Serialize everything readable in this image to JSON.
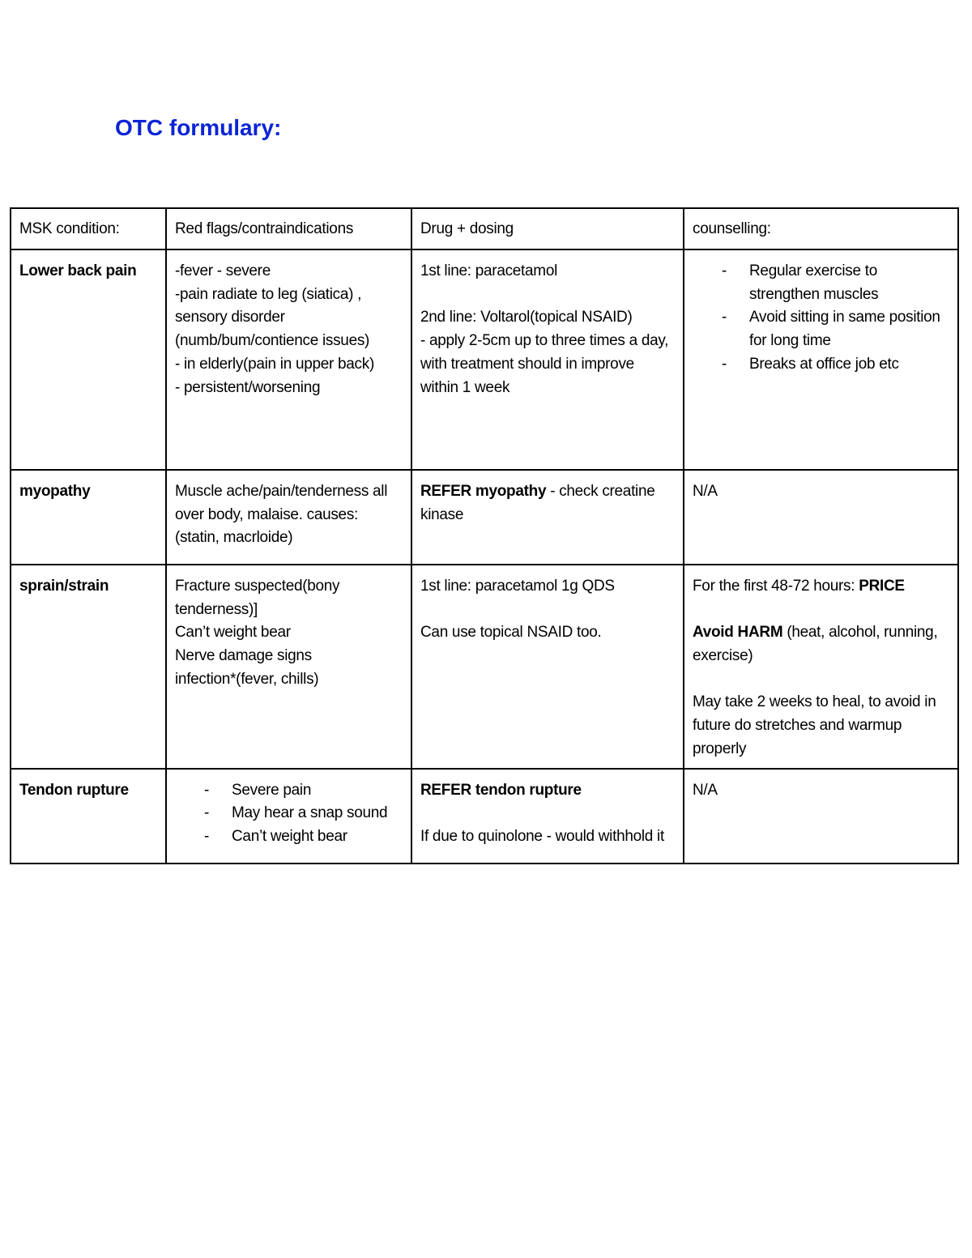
{
  "title": "OTC formulary:",
  "colors": {
    "title": "#0b24d6",
    "border": "#000000"
  },
  "table": {
    "headers": [
      "MSK condition:",
      "Red flags/contraindications",
      "Drug + dosing",
      "counselling:"
    ],
    "rows": [
      {
        "condition": "Lower back pain",
        "red_flags": {
          "lines": [
            [
              {
                "t": "-fever - severe"
              }
            ],
            [
              {
                "t": "-pain radiate to leg (siatica) , sensory disorder (numb/bum/contience issues)"
              }
            ],
            [
              {
                "t": "- in elderly(pain in upper back)"
              }
            ],
            [
              {
                "t": "- persistent/worsening"
              }
            ]
          ]
        },
        "drug": {
          "lines": [
            [
              {
                "t": "1st line: paracetamol"
              }
            ],
            [
              {
                "t": ""
              }
            ],
            [
              {
                "t": "2nd line: Voltarol(topical NSAID)"
              }
            ],
            [
              {
                "t": "- apply 2-5cm up to three times a day, with treatment should in improve within 1 week"
              }
            ]
          ]
        },
        "counselling": {
          "bullets": [
            "Regular exercise to strengthen muscles",
            "Avoid sitting in same position for long time",
            "Breaks at office job etc"
          ]
        }
      },
      {
        "condition": "myopathy",
        "red_flags": {
          "lines": [
            [
              {
                "t": "Muscle ache/pain/tenderness all over body, malaise. causes: (statin, macrloide)"
              }
            ]
          ]
        },
        "drug": {
          "lines": [
            [
              {
                "t": "REFER myopathy",
                "b": true
              },
              {
                "t": " - check creatine kinase"
              }
            ]
          ]
        },
        "counselling": {
          "lines": [
            [
              {
                "t": "N/A"
              }
            ]
          ]
        }
      },
      {
        "condition": "sprain/strain",
        "red_flags": {
          "lines": [
            [
              {
                "t": "Fracture suspected(bony tenderness)]"
              }
            ],
            [
              {
                "t": "Can’t weight bear"
              }
            ],
            [
              {
                "t": "Nerve damage signs"
              }
            ],
            [
              {
                "t": "infection*(fever, chills)"
              }
            ]
          ]
        },
        "drug": {
          "lines": [
            [
              {
                "t": "1st line: paracetamol 1g QDS"
              }
            ],
            [
              {
                "t": ""
              }
            ],
            [
              {
                "t": "Can use topical NSAID too."
              }
            ]
          ]
        },
        "counselling": {
          "lines": [
            [
              {
                "t": "For the first 48-72 hours: "
              },
              {
                "t": "PRICE",
                "b": true
              }
            ],
            [
              {
                "t": ""
              }
            ],
            [
              {
                "t": "Avoid HARM",
                "b": true
              },
              {
                "t": " (heat, alcohol, running, exercise)"
              }
            ],
            [
              {
                "t": ""
              }
            ],
            [
              {
                "t": "May take 2 weeks to heal, to avoid in future do stretches and warmup properly"
              }
            ]
          ]
        }
      },
      {
        "condition": "Tendon rupture",
        "red_flags": {
          "bullets": [
            "Severe pain",
            "May hear a snap sound",
            "Can’t weight bear"
          ]
        },
        "drug": {
          "lines": [
            [
              {
                "t": "REFER tendon rupture",
                "b": true
              }
            ],
            [
              {
                "t": ""
              }
            ],
            [
              {
                "t": "If due to quinolone - would withhold it"
              }
            ]
          ]
        },
        "counselling": {
          "lines": [
            [
              {
                "t": "N/A"
              }
            ]
          ]
        }
      }
    ]
  }
}
